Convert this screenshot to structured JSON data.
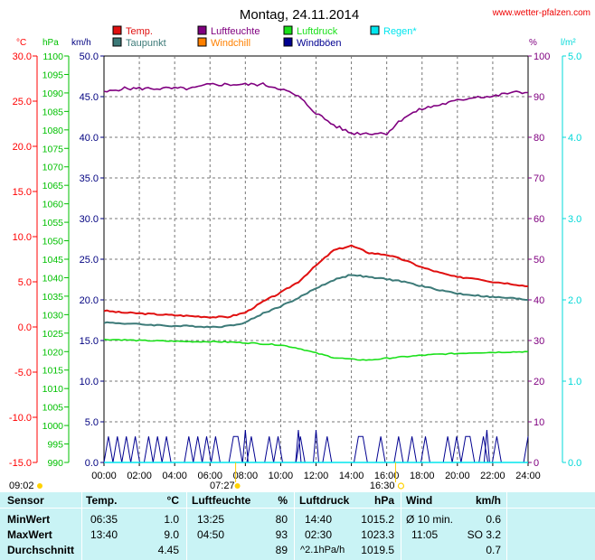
{
  "title": "Montag, 24.11.2014",
  "site": "www.wetter-pfalzen.com",
  "legend": [
    {
      "label": "Temp.",
      "color": "#e01010"
    },
    {
      "label": "Taupunkt",
      "color": "#3c7a78"
    },
    {
      "label": "Luftfeuchte",
      "color": "#800080"
    },
    {
      "label": "Windchill",
      "color": "#ff8000"
    },
    {
      "label": "Luftdruck",
      "color": "#19e019"
    },
    {
      "label": "Windböen",
      "color": "#000090"
    },
    {
      "label": "Regen*",
      "color": "#00e5ee"
    }
  ],
  "axes": {
    "temp": {
      "unit": "°C",
      "ticks": [
        "30.0",
        "25.0",
        "20.0",
        "15.0",
        "10.0",
        "5.0",
        "0.0",
        "-5.0",
        "-10.0",
        "-15.0"
      ],
      "color": "#ff0000"
    },
    "pressure": {
      "unit": "hPa",
      "ticks": [
        "1100",
        "1095",
        "1090",
        "1085",
        "1080",
        "1075",
        "1070",
        "1065",
        "1060",
        "1055",
        "1050",
        "1045",
        "1040",
        "1035",
        "1030",
        "1025",
        "1020",
        "1015",
        "1010",
        "1005",
        "1000",
        "995",
        "990"
      ],
      "color": "#00c000"
    },
    "wind": {
      "unit": "km/h",
      "ticks": [
        "50.0",
        "45.0",
        "40.0",
        "35.0",
        "30.0",
        "25.0",
        "20.0",
        "15.0",
        "10.0",
        "5.0",
        "0.0"
      ],
      "color": "#000080"
    },
    "humidity": {
      "unit": "%",
      "ticks": [
        "100",
        "90",
        "80",
        "70",
        "60",
        "50",
        "40",
        "30",
        "20",
        "10",
        "0"
      ],
      "color": "#800080"
    },
    "rain": {
      "unit": "l/m²",
      "ticks": [
        "5.0",
        "4.0",
        "3.0",
        "2.0",
        "1.0",
        "0.0"
      ],
      "color": "#00d8d8"
    },
    "time": {
      "ticks": [
        "00:00",
        "02:00",
        "04:00",
        "06:00",
        "08:00",
        "10:00",
        "12:00",
        "14:00",
        "16:00",
        "18:00",
        "20:00",
        "22:00",
        "24:00"
      ]
    }
  },
  "sun": {
    "moonset": "09:02",
    "sunrise": "07:27",
    "sunset": "16:30"
  },
  "chart_data": {
    "type": "line",
    "title": "Montag, 24.11.2014",
    "x": [
      "00:00",
      "01:00",
      "02:00",
      "03:00",
      "04:00",
      "05:00",
      "06:00",
      "07:00",
      "08:00",
      "09:00",
      "10:00",
      "11:00",
      "12:00",
      "13:00",
      "14:00",
      "15:00",
      "16:00",
      "17:00",
      "18:00",
      "19:00",
      "20:00",
      "21:00",
      "22:00",
      "23:00",
      "24:00"
    ],
    "series": [
      {
        "name": "Temp.",
        "unit": "°C",
        "color": "#e01010",
        "values": [
          1.8,
          1.6,
          1.5,
          1.4,
          1.3,
          1.2,
          1.1,
          1.1,
          1.6,
          2.8,
          3.8,
          5.0,
          6.8,
          8.5,
          9.0,
          8.2,
          8.0,
          7.4,
          6.6,
          6.0,
          5.5,
          5.4,
          5.0,
          4.8,
          4.5
        ]
      },
      {
        "name": "Taupunkt",
        "unit": "°C",
        "color": "#3c7a78",
        "values": [
          0.5,
          0.4,
          0.3,
          0.2,
          0.1,
          0.1,
          0.0,
          0.1,
          0.5,
          1.5,
          2.3,
          3.2,
          4.3,
          5.2,
          5.8,
          5.5,
          5.3,
          5.0,
          4.5,
          4.1,
          3.7,
          3.5,
          3.3,
          3.2,
          3.0
        ]
      },
      {
        "name": "Luftfeuchte",
        "unit": "%",
        "color": "#800080",
        "values": [
          91,
          92,
          92,
          92,
          92,
          92,
          93,
          93,
          93,
          93,
          92,
          90,
          86,
          83,
          81,
          81,
          81,
          85,
          87,
          88,
          89,
          90,
          90,
          91,
          91
        ]
      },
      {
        "name": "Luftdruck",
        "unit": "hPa",
        "color": "#19e019",
        "values": [
          1023.3,
          1023.2,
          1023.0,
          1022.9,
          1022.8,
          1022.7,
          1022.7,
          1022.6,
          1022.4,
          1022.1,
          1021.8,
          1020.9,
          1019.6,
          1018.4,
          1017.9,
          1017.7,
          1018.2,
          1018.6,
          1019.0,
          1019.3,
          1019.5,
          1019.7,
          1019.8,
          1019.9,
          1020.0
        ]
      }
    ],
    "windboeen_kmh": [
      0,
      3.2,
      0,
      3.2,
      0,
      3.2,
      0,
      3.2,
      0,
      0,
      3.2,
      0,
      3.2,
      0,
      3.2,
      0,
      0,
      0,
      0,
      3.2,
      0,
      3.2,
      0,
      3.2,
      0,
      3.2,
      0,
      0,
      0,
      3.2,
      3.2,
      0,
      0,
      3.2,
      0,
      0,
      0,
      3.2,
      0,
      3.2,
      0,
      0,
      0,
      0,
      3.2,
      0,
      0,
      0,
      0,
      0,
      3.2,
      0,
      0,
      0,
      0,
      0,
      0,
      3.2,
      3.2,
      0,
      0,
      0,
      3.2,
      0,
      0,
      0,
      3.2,
      0,
      0,
      3.2,
      0,
      0,
      3.2,
      0,
      0,
      0,
      0,
      3.2,
      0,
      3.2,
      0,
      3.2,
      3.2,
      0,
      0,
      3.2,
      0,
      0,
      3.2,
      0,
      0,
      0,
      0,
      0,
      0,
      3.2
    ],
    "windboeen_peaks": [
      {
        "time": "08:00",
        "value": 4.0
      },
      {
        "time": "11:00",
        "value": 4.0
      },
      {
        "time": "12:00",
        "value": 4.0
      },
      {
        "time": "21:40",
        "value": 4.0
      }
    ],
    "regen_lm2": [
      0,
      0,
      0,
      0,
      0,
      0,
      0,
      0,
      0,
      0,
      0,
      0,
      0,
      0,
      0,
      0,
      0,
      0,
      0,
      0,
      0,
      0,
      0,
      0,
      0
    ]
  },
  "stats": {
    "headers": {
      "sensor": "Sensor",
      "temp": "Temp.",
      "temp_unit": "°C",
      "hum": "Luftfeuchte",
      "hum_unit": "%",
      "press": "Luftdruck",
      "press_unit": "hPa",
      "wind": "Wind",
      "wind_unit": "km/h"
    },
    "rows": [
      {
        "label": "MinWert",
        "temp_time": "06:35",
        "temp_val": "1.0",
        "hum_time": "13:25",
        "hum_val": "80",
        "press_time": "14:40",
        "press_val": "1015.2",
        "wind_time": "Ø 10 min.",
        "wind_val": "0.6"
      },
      {
        "label": "MaxWert",
        "temp_time": "13:40",
        "temp_val": "9.0",
        "hum_time": "04:50",
        "hum_val": "93",
        "press_time": "02:30",
        "press_val": "1023.3",
        "wind_time": "11:05",
        "wind_val": "SO 3.2"
      },
      {
        "label": "Durchschnitt",
        "temp_time": "",
        "temp_val": "4.45",
        "hum_time": "",
        "hum_val": "89",
        "press_time": "^2.1hPa/h",
        "press_val": "1019.5",
        "wind_time": "",
        "wind_val": "0.7"
      }
    ]
  }
}
